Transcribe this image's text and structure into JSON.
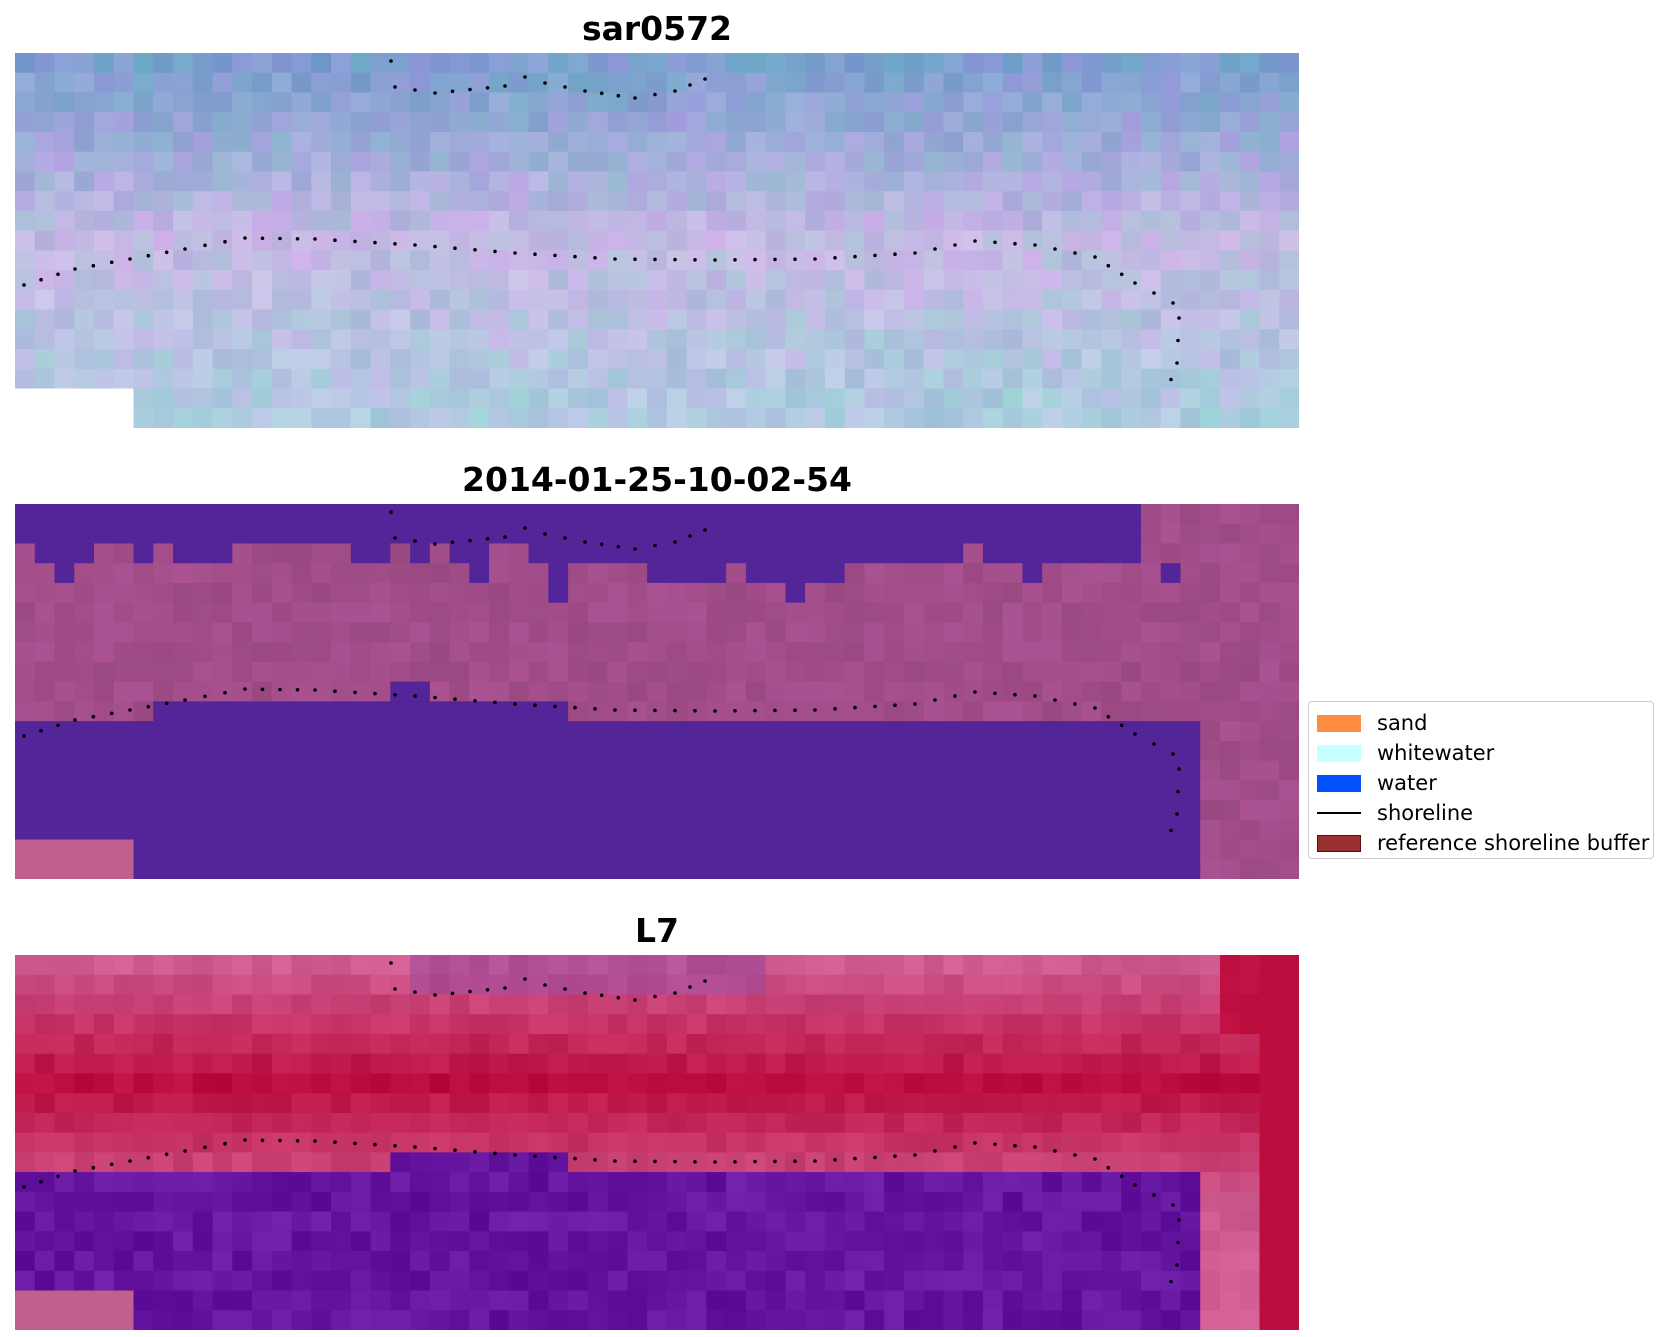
{
  "panels": [
    {
      "title": "sar0572",
      "style": "rgb"
    },
    {
      "title": "2014-01-25-10-02-54",
      "style": "classified"
    },
    {
      "title": "L7",
      "style": "index"
    }
  ],
  "legend": {
    "items": [
      {
        "label": "sand",
        "type": "patch",
        "color": "#ff8c42",
        "edge": "#ff8c42"
      },
      {
        "label": "whitewater",
        "type": "patch",
        "color": "#c8ffff",
        "edge": "#c8ffff"
      },
      {
        "label": "water",
        "type": "patch",
        "color": "#0050ff",
        "edge": "#0050ff"
      },
      {
        "label": "shoreline",
        "type": "line",
        "color": "#000000"
      },
      {
        "label": "reference shoreline buffer",
        "type": "patch",
        "color": "#9a3030",
        "edge": "#5a1010"
      }
    ]
  },
  "colors": {
    "rgb_top": "#7d9fcf",
    "rgb_mid": "#c3b9e3",
    "rgb_bottom": "#aecbe0",
    "class_water": "#532599",
    "class_land": "#a24d8a",
    "index_water": "#65159f",
    "index_land_light": "#cf5a8f",
    "index_land_dark": "#bd0c3e",
    "nodata": "#c0608f",
    "shoreline_dots": "#000000"
  }
}
